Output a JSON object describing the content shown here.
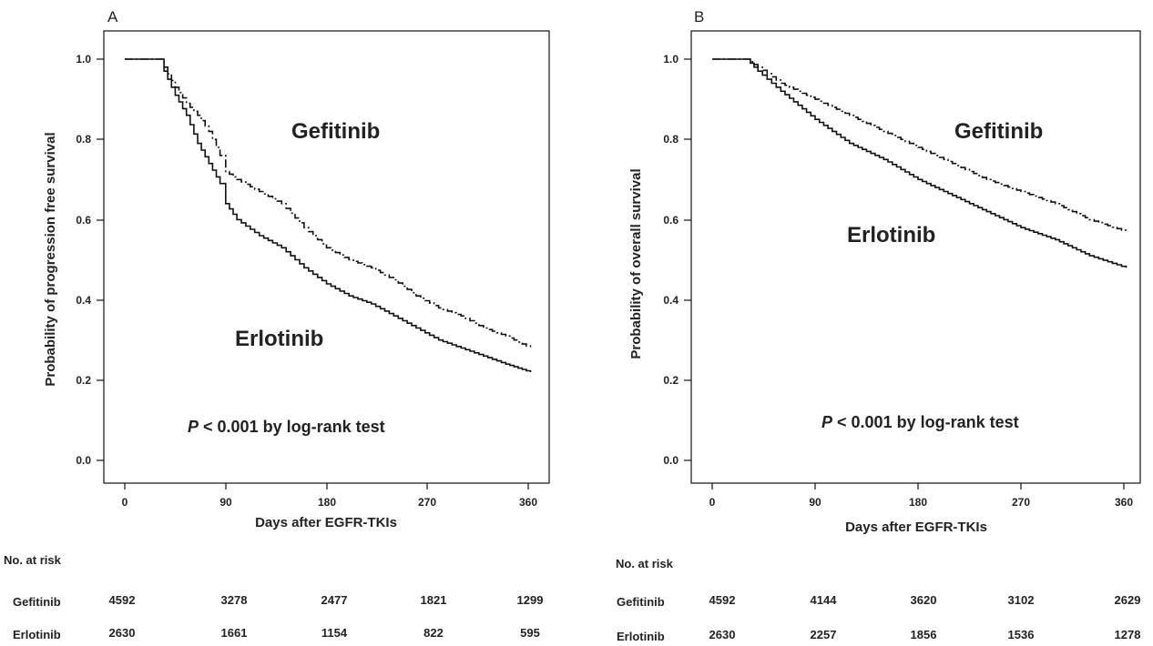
{
  "chart_data": [
    {
      "panel": "A",
      "type": "line",
      "xlabel": "Days after EGFR-TKIs",
      "ylabel": "Probability of progression free survival",
      "xlim": [
        0,
        365
      ],
      "ylim": [
        0,
        1.0
      ],
      "xticks": [
        "0",
        "90",
        "180",
        "270",
        "360"
      ],
      "yticks": [
        "0.0",
        "0.2",
        "0.4",
        "0.6",
        "0.8",
        "1.0"
      ],
      "annotations": {
        "gefitinib": "Gefitinib",
        "erlotinib": "Erlotinib",
        "p_italic": "P",
        "p_rest": " < 0.001 by log-rank test"
      },
      "series": [
        {
          "name": "Gefitinib",
          "style": "dash-dot",
          "x": [
            0,
            30,
            35,
            45,
            55,
            65,
            75,
            85,
            90,
            100,
            120,
            140,
            160,
            180,
            200,
            220,
            240,
            260,
            280,
            300,
            320,
            340,
            362
          ],
          "y": [
            1.0,
            1.0,
            0.98,
            0.93,
            0.89,
            0.86,
            0.82,
            0.76,
            0.72,
            0.7,
            0.67,
            0.64,
            0.58,
            0.53,
            0.5,
            0.48,
            0.45,
            0.41,
            0.38,
            0.36,
            0.33,
            0.31,
            0.28
          ]
        },
        {
          "name": "Erlotinib",
          "style": "solid",
          "x": [
            0,
            30,
            35,
            45,
            55,
            65,
            75,
            85,
            90,
            100,
            120,
            140,
            160,
            180,
            200,
            220,
            240,
            260,
            280,
            300,
            320,
            340,
            362
          ],
          "y": [
            1.0,
            1.0,
            0.97,
            0.91,
            0.86,
            0.79,
            0.74,
            0.69,
            0.64,
            0.6,
            0.56,
            0.53,
            0.48,
            0.44,
            0.41,
            0.39,
            0.36,
            0.33,
            0.3,
            0.28,
            0.26,
            0.24,
            0.22
          ]
        }
      ],
      "risk_table": {
        "title": "No. at risk",
        "rows": [
          {
            "label": "Gefitinib",
            "values": [
              "4592",
              "3278",
              "2477",
              "1821",
              "1299"
            ]
          },
          {
            "label": "Erlotinib",
            "values": [
              "2630",
              "1661",
              "1154",
              "822",
              "595"
            ]
          }
        ]
      }
    },
    {
      "panel": "B",
      "type": "line",
      "xlabel": "Days after EGFR-TKIs",
      "ylabel": "Probability of overall survival",
      "xlim": [
        0,
        365
      ],
      "ylim": [
        0,
        1.0
      ],
      "xticks": [
        "0",
        "90",
        "180",
        "270",
        "360"
      ],
      "yticks": [
        "0.0",
        "0.2",
        "0.4",
        "0.6",
        "0.8",
        "1.0"
      ],
      "annotations": {
        "gefitinib": "Gefitinib",
        "erlotinib": "Erlotinib",
        "p_italic": "P",
        "p_rest": " < 0.001 by log-rank test"
      },
      "series": [
        {
          "name": "Gefitinib",
          "style": "dash-dot",
          "x": [
            0,
            30,
            40,
            60,
            90,
            120,
            150,
            180,
            210,
            240,
            270,
            300,
            330,
            362
          ],
          "y": [
            1.0,
            1.0,
            0.98,
            0.94,
            0.9,
            0.86,
            0.82,
            0.78,
            0.74,
            0.7,
            0.67,
            0.64,
            0.6,
            0.57
          ]
        },
        {
          "name": "Erlotinib",
          "style": "solid",
          "x": [
            0,
            30,
            40,
            60,
            90,
            120,
            150,
            180,
            210,
            240,
            270,
            300,
            330,
            362
          ],
          "y": [
            1.0,
            1.0,
            0.97,
            0.92,
            0.85,
            0.79,
            0.75,
            0.7,
            0.66,
            0.62,
            0.58,
            0.55,
            0.51,
            0.48
          ]
        }
      ],
      "risk_table": {
        "title": "No. at risk",
        "rows": [
          {
            "label": "Gefitinib",
            "values": [
              "4592",
              "4144",
              "3620",
              "3102",
              "2629"
            ]
          },
          {
            "label": "Erlotinib",
            "values": [
              "2630",
              "2257",
              "1856",
              "1536",
              "1278"
            ]
          }
        ]
      }
    }
  ]
}
